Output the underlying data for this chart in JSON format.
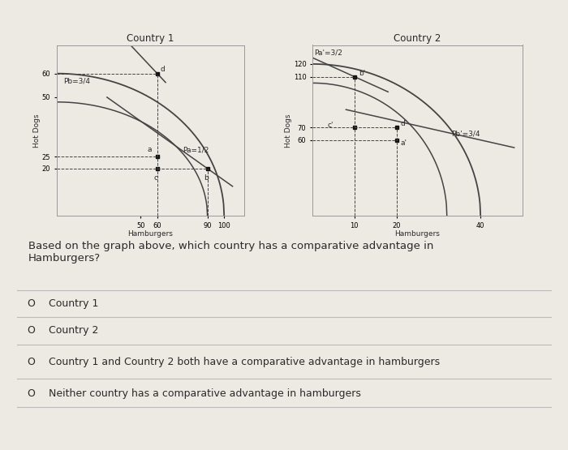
{
  "bg_color": "#ede9e3",
  "title1": "Country 1",
  "title2": "Country 2",
  "ylabel1": "Hot Dogs",
  "ylabel2": "Hot Dogs",
  "xlabel1": "Hamburgers",
  "xlabel2": "Hamburgers",
  "c1_xticks": [
    50,
    60,
    90,
    100
  ],
  "c1_yticks": [
    20,
    25,
    50,
    60
  ],
  "c2_xticks": [
    10,
    20,
    40
  ],
  "c2_yticks": [
    60,
    70,
    110,
    120
  ],
  "c1_pb_label": "Pb=3/4",
  "c1_pa_label": "Pa=1/2",
  "c2_pa_label": "Pa'=3/2",
  "c2_pb_label": "Pb'=3/4",
  "question": "Based on the graph above, which country has a comparative advantage in\nHamburgers?",
  "options": [
    "Country 1",
    "Country 2",
    "Country 1 and Country 2 both have a comparative advantage in hamburgers",
    "Neither country has a comparative advantage in hamburgers"
  ],
  "text_color": "#2a2a2a",
  "line_color": "#444444",
  "dot_color": "#111111"
}
